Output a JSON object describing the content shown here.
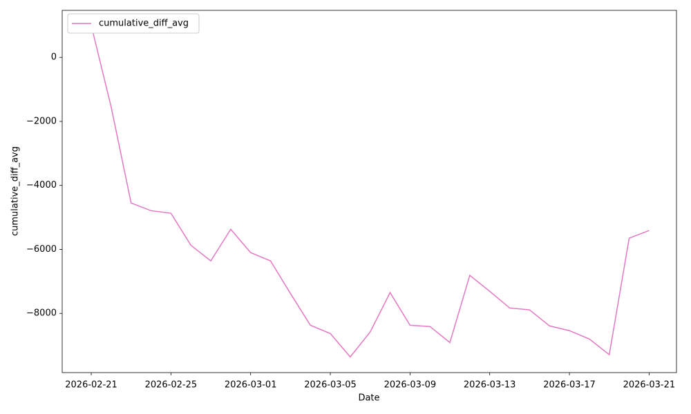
{
  "chart_data": {
    "type": "line",
    "x_label": "Date",
    "y_label": "cumulative_diff_avg",
    "x": [
      "2026-02-21",
      "2026-02-22",
      "2026-02-23",
      "2026-02-24",
      "2026-02-25",
      "2026-02-26",
      "2026-02-27",
      "2026-02-28",
      "2026-03-01",
      "2026-03-02",
      "2026-03-03",
      "2026-03-04",
      "2026-03-05",
      "2026-03-06",
      "2026-03-07",
      "2026-03-08",
      "2026-03-09",
      "2026-03-10",
      "2026-03-11",
      "2026-03-12",
      "2026-03-13",
      "2026-03-14",
      "2026-03-15",
      "2026-03-16",
      "2026-03-17",
      "2026-03-18",
      "2026-03-19",
      "2026-03-20",
      "2026-03-21"
    ],
    "series": [
      {
        "name": "cumulative_diff_avg",
        "color": "#e377c2",
        "values": [
          1000,
          -1550,
          -4550,
          -4790,
          -4870,
          -5870,
          -6360,
          -5370,
          -6100,
          -6360,
          -7380,
          -8370,
          -8630,
          -9360,
          -8580,
          -7350,
          -8370,
          -8410,
          -8910,
          -6810,
          -7310,
          -7830,
          -7890,
          -8390,
          -8540,
          -8800,
          -9290,
          -5650,
          -5410
        ]
      }
    ],
    "xlim": [
      "2026-02-19T13:00Z",
      "2026-03-22T09:00Z"
    ],
    "xticks": [
      "2026-02-21",
      "2026-02-25",
      "2026-03-01",
      "2026-03-05",
      "2026-03-09",
      "2026-03-13",
      "2026-03-17",
      "2026-03-21"
    ],
    "ylim": [
      -9850,
      1470
    ],
    "yticks": [
      {
        "value": -8000,
        "label": "−8000"
      },
      {
        "value": -6000,
        "label": "−6000"
      },
      {
        "value": -4000,
        "label": "−4000"
      },
      {
        "value": -2000,
        "label": "−2000"
      },
      0
    ],
    "grid": false,
    "legend": "upper left"
  }
}
